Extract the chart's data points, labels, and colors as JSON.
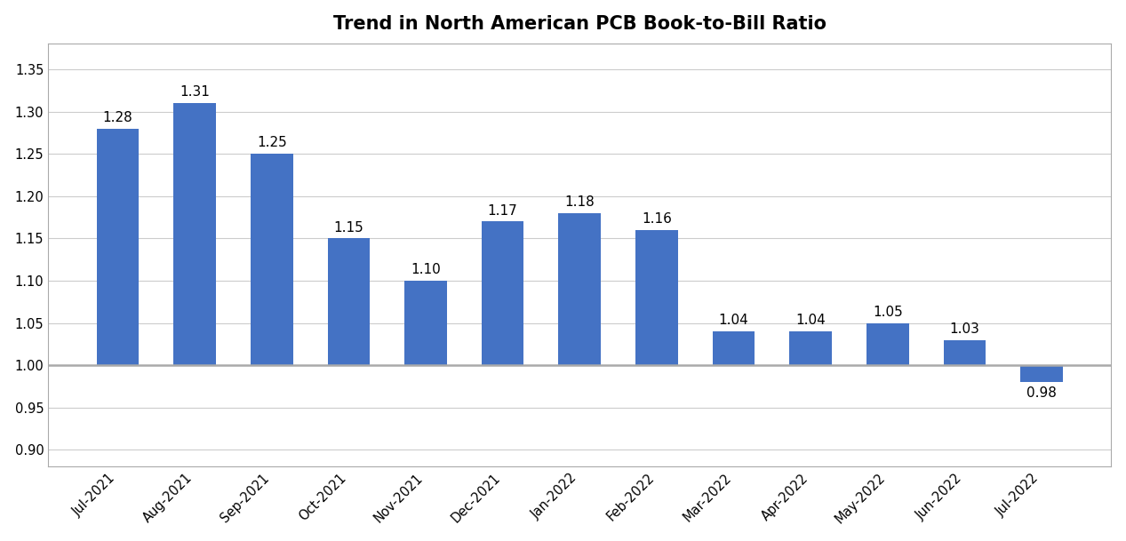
{
  "title": "Trend in North American PCB Book-to-Bill Ratio",
  "categories": [
    "Jul-2021",
    "Aug-2021",
    "Sep-2021",
    "Oct-2021",
    "Nov-2021",
    "Dec-2021",
    "Jan-2022",
    "Feb-2022",
    "Mar-2022",
    "Apr-2022",
    "May-2022",
    "Jun-2022",
    "Jul-2022"
  ],
  "values": [
    1.28,
    1.31,
    1.25,
    1.15,
    1.1,
    1.17,
    1.18,
    1.16,
    1.04,
    1.04,
    1.05,
    1.03,
    0.98
  ],
  "bar_color": "#4472C4",
  "label_color": "#000000",
  "background_color": "#ffffff",
  "ylim": [
    0.88,
    1.38
  ],
  "yticks": [
    0.9,
    0.95,
    1.0,
    1.05,
    1.1,
    1.15,
    1.2,
    1.25,
    1.3,
    1.35
  ],
  "title_fontsize": 15,
  "label_fontsize": 11,
  "tick_fontsize": 10.5,
  "bar_width": 0.55,
  "grid_color": "#cccccc",
  "spine_color": "#aaaaaa",
  "baseline": 1.0
}
